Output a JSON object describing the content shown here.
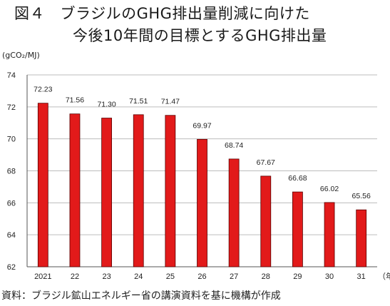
{
  "title_line1": "図４　ブラジルのGHG排出量削減に向けた",
  "title_line2": "今後10年間の目標とするGHG排出量",
  "source": "資料：ブラジル鉱山エネルギー省の講演資料を基に機構が作成",
  "chart_data": {
    "type": "bar",
    "ylabel": "(gCO₂/MJ)",
    "xunit": "（年）",
    "categories": [
      "2021",
      "22",
      "23",
      "24",
      "25",
      "26",
      "27",
      "28",
      "29",
      "30",
      "31"
    ],
    "values": [
      72.23,
      71.56,
      71.3,
      71.51,
      71.47,
      69.97,
      68.74,
      67.67,
      66.68,
      66.02,
      65.56
    ],
    "value_labels": [
      "72.23",
      "71.56",
      "71.30",
      "71.51",
      "71.47",
      "69.97",
      "68.74",
      "67.67",
      "66.68",
      "66.02",
      "65.56"
    ],
    "ylim": [
      62,
      74
    ],
    "yticks": [
      62,
      64,
      66,
      68,
      70,
      72,
      74
    ],
    "grid": true,
    "bar_color": "#e21a1a",
    "bar_edge": "#5a0000"
  }
}
